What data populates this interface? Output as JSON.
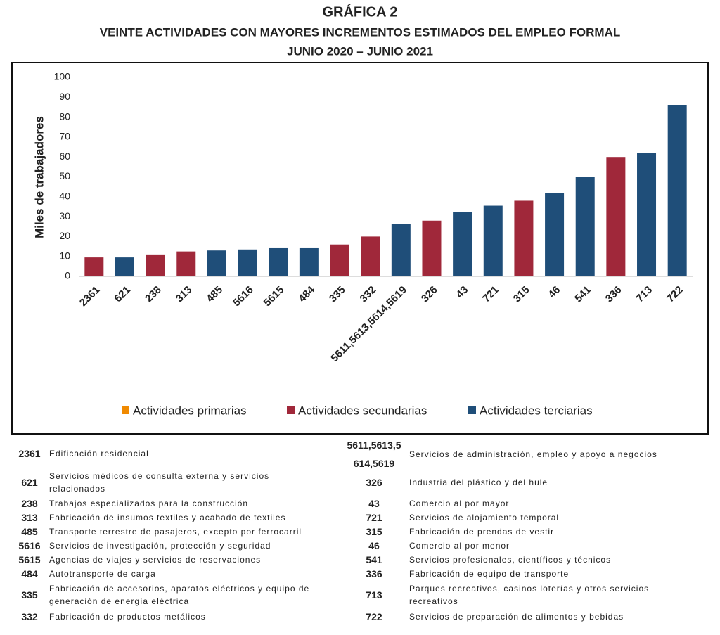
{
  "chart_data": {
    "type": "bar",
    "title": "GRÁFICA 2",
    "subtitle": [
      "VEINTE ACTIVIDADES CON MAYORES INCREMENTOS ESTIMADOS DEL EMPLEO FORMAL",
      "JUNIO 2020 – JUNIO 2021"
    ],
    "y_label": "Miles de trabajadores",
    "categories": [
      "2361",
      "621",
      "238",
      "313",
      "485",
      "5616",
      "5615",
      "484",
      "335",
      "332",
      "5611,5613,5614,5619",
      "326",
      "43",
      "721",
      "315",
      "46",
      "541",
      "336",
      "713",
      "722"
    ],
    "series": [
      {
        "name": "Actividades primarias",
        "color": "#f08a00",
        "values": [
          null,
          null,
          null,
          null,
          null,
          null,
          null,
          null,
          null,
          null,
          null,
          null,
          null,
          null,
          null,
          null,
          null,
          null,
          null,
          null
        ]
      },
      {
        "name": "Actividades secundarias",
        "color": "#a0283a",
        "values": [
          9.5,
          null,
          11,
          12.5,
          null,
          null,
          null,
          null,
          16,
          20,
          null,
          28,
          null,
          null,
          38,
          null,
          null,
          60,
          null,
          null
        ]
      },
      {
        "name": "Actividades terciarias",
        "color": "#1f4e79",
        "values": [
          null,
          9.5,
          null,
          null,
          13,
          13.5,
          14.5,
          14.5,
          null,
          null,
          26.5,
          null,
          32.5,
          35.5,
          null,
          42,
          50,
          null,
          62,
          86
        ]
      }
    ],
    "ylim": [
      0,
      100
    ],
    "yticks": [
      0,
      10,
      20,
      30,
      40,
      50,
      60,
      70,
      80,
      90,
      100
    ],
    "grid": false,
    "legend": "bottom"
  },
  "glossary": {
    "left": [
      [
        "2361",
        "Edificación residencial"
      ],
      [
        "621",
        "Servicios médicos de consulta externa y servicios relacionados"
      ],
      [
        "238",
        "Trabajos especializados para la construcción"
      ],
      [
        "313",
        "Fabricación de insumos textiles y acabado de textiles"
      ],
      [
        "485",
        "Transporte terrestre de pasajeros, excepto por ferrocarril"
      ],
      [
        "5616",
        "Servicios de investigación, protección y seguridad"
      ],
      [
        "5615",
        "Agencias de viajes y servicios de reservaciones"
      ],
      [
        "484",
        "Autotransporte de carga"
      ],
      [
        "335",
        "Fabricación de accesorios, aparatos eléctricos y equipo de generación de energía eléctrica"
      ],
      [
        "332",
        "Fabricación de productos metálicos"
      ]
    ],
    "right": [
      [
        "5611,5613,5614,5619",
        "Servicios de administración, empleo y apoyo a negocios"
      ],
      [
        "326",
        "Industria del plástico y del hule"
      ],
      [
        "43",
        "Comercio al por mayor"
      ],
      [
        "721",
        "Servicios de alojamiento temporal"
      ],
      [
        "315",
        "Fabricación de prendas de vestir"
      ],
      [
        "46",
        "Comercio al por menor"
      ],
      [
        "541",
        "Servicios profesionales, científicos y técnicos"
      ],
      [
        "336",
        "Fabricación de equipo de transporte"
      ],
      [
        "713",
        "Parques recreativos, casinos loterías y otros servicios recreativos"
      ],
      [
        "722",
        "Servicios de preparación de alimentos y bebidas"
      ]
    ]
  }
}
